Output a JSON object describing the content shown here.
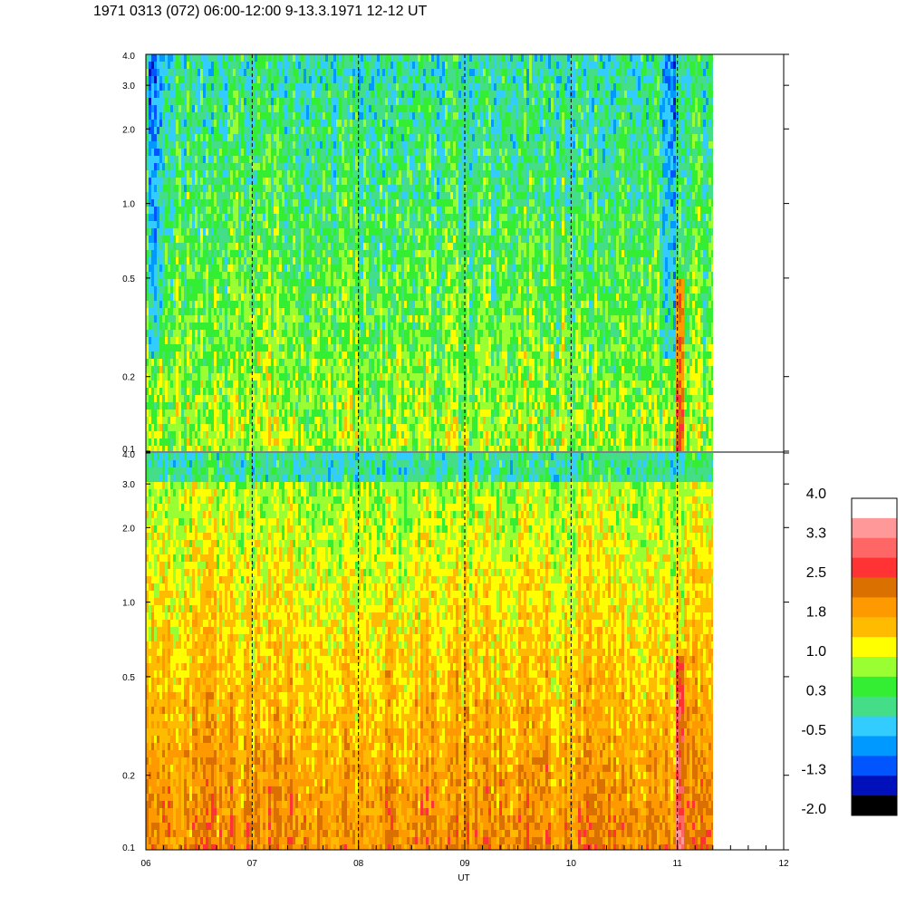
{
  "title": "1971 0313 (072) 06:00-12:00 9-13.3.1971  12-12 UT",
  "chart_data": [
    {
      "type": "heatmap",
      "panel": "upper",
      "xlim": [
        6,
        12
      ],
      "data_end_x": 11.33,
      "ylim": [
        0.1,
        4.0
      ],
      "y_scale": "log",
      "y_ticks": [
        "0.1",
        "0.2",
        "0.5",
        "1.0",
        "2.0",
        "3.0",
        "4.0"
      ],
      "y_tick_values": [
        0.1,
        0.2,
        0.5,
        1.0,
        2.0,
        3.0,
        4.0
      ],
      "dashed_lines_x": [
        7,
        8,
        9,
        10,
        11
      ],
      "dominant_levels": [
        "green",
        "yellow-green",
        "cyan"
      ]
    },
    {
      "type": "heatmap",
      "panel": "lower",
      "xlim": [
        6,
        12
      ],
      "data_end_x": 11.33,
      "ylim": [
        0.1,
        4.0
      ],
      "y_scale": "log",
      "y_ticks": [
        "0.1",
        "0.2",
        "0.5",
        "1.0",
        "2.0",
        "3.0",
        "4.0"
      ],
      "y_tick_values": [
        0.1,
        0.2,
        0.5,
        1.0,
        2.0,
        3.0,
        4.0
      ],
      "dashed_lines_x": [
        7,
        8,
        9,
        10,
        11
      ],
      "dominant_levels": [
        "orange",
        "yellow",
        "dark-orange"
      ]
    }
  ],
  "x_axis": {
    "label": "UT",
    "ticks": [
      "06",
      "07",
      "08",
      "09",
      "10",
      "11",
      "12"
    ],
    "tick_values": [
      6,
      7,
      8,
      9,
      10,
      11,
      12
    ]
  },
  "colorbar": {
    "labels": [
      "4.0",
      "3.3",
      "2.5",
      "1.8",
      "1.0",
      "0.3",
      "-0.5",
      "-1.3",
      "-2.0"
    ],
    "colors": [
      "#ffffff",
      "#ff9999",
      "#ff6666",
      "#ff3333",
      "#d97000",
      "#ff9900",
      "#ffbb00",
      "#ffff00",
      "#99ff33",
      "#33ee33",
      "#44dd88",
      "#33ccff",
      "#0099ff",
      "#0055ff",
      "#0011bb",
      "#000000"
    ]
  }
}
